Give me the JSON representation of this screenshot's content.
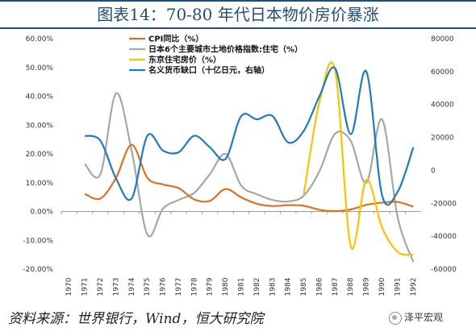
{
  "header": {
    "title": "图表14：70-80 年代日本物价房价暴涨"
  },
  "source": "资料来源：世界银行，Wind，恒大研究院",
  "brand": "泽平宏观",
  "chart_data": {
    "type": "line",
    "categories": [
      "1970",
      "1971",
      "1972",
      "1973",
      "1974",
      "1975",
      "1976",
      "1977",
      "1978",
      "1979",
      "1980",
      "1981",
      "1982",
      "1983",
      "1984",
      "1985",
      "1986",
      "1987",
      "1988",
      "1989",
      "1990",
      "1991",
      "1992"
    ],
    "y_left": {
      "ticks": [
        "60.00%",
        "50.00%",
        "40.00%",
        "30.00%",
        "20.00%",
        "10.00%",
        "0.00%",
        "-10.00%",
        "-20.00%"
      ],
      "ylim": [
        -20,
        60
      ]
    },
    "y_right": {
      "ticks": [
        "80000",
        "60000",
        "40000",
        "20000",
        "0",
        "-20000",
        "-40000",
        "-60000"
      ],
      "ylim": [
        -60000,
        80000
      ]
    },
    "legend_position": "top-center",
    "grid": false,
    "series": [
      {
        "name": "CPI同比（%）",
        "color": "#e07020",
        "axis": "left",
        "values": [
          null,
          6.1,
          4.5,
          11.7,
          23.2,
          11.7,
          9.4,
          8.1,
          4.2,
          3.7,
          7.8,
          4.9,
          2.7,
          1.9,
          2.2,
          2.0,
          0.6,
          0.1,
          0.7,
          2.3,
          3.1,
          3.3,
          1.7
        ]
      },
      {
        "name": "日本6个主要城市土地价格指数:住宅（%）",
        "color": "#a6a6a6",
        "axis": "left",
        "values": [
          null,
          16.5,
          13.0,
          41.0,
          21.0,
          -8.0,
          1.0,
          4.0,
          6.5,
          13.0,
          20.0,
          9.0,
          6.0,
          4.0,
          3.5,
          5.5,
          14.0,
          27.0,
          24.5,
          10.0,
          32.0,
          -2.0,
          -17.5
        ]
      },
      {
        "name": "东京住宅房价（%）",
        "color": "#ffc000",
        "axis": "left",
        "values": [
          null,
          null,
          null,
          null,
          null,
          null,
          null,
          null,
          null,
          null,
          null,
          null,
          null,
          null,
          null,
          6.0,
          38.0,
          49.0,
          -12.0,
          11.0,
          -5.5,
          -14.0,
          -15.0
        ]
      },
      {
        "name": "名义货币缺口（十亿日元，右轴）",
        "color": "#1f7bbd",
        "axis": "right",
        "values": [
          null,
          21000,
          18000,
          -5000,
          -17000,
          21000,
          12000,
          11000,
          21000,
          14000,
          7000,
          33000,
          31000,
          33000,
          17000,
          24000,
          45000,
          62000,
          22000,
          60000,
          -15000,
          -13000,
          14000
        ]
      }
    ]
  }
}
